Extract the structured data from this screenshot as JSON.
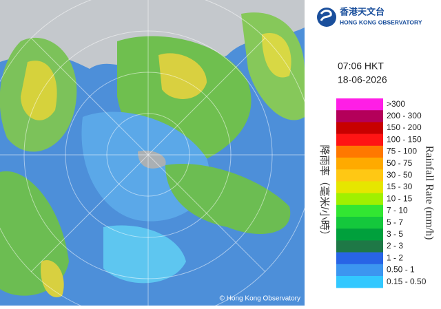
{
  "logo": {
    "name_zh": "香港天文台",
    "name_en": "HONG KONG OBSERVATORY"
  },
  "time": "07:06 HKT",
  "date": "18-06-2026",
  "legend": {
    "title_zh": "降雨率（毫米/小時）",
    "title_en": "Rainfall Rate (mm/h)",
    "items": [
      {
        "label": ">300",
        "color": "#ff1ee6"
      },
      {
        "label": "200 - 300",
        "color": "#b4005a"
      },
      {
        "label": "150 - 200",
        "color": "#c80000"
      },
      {
        "label": "100 - 150",
        "color": "#ff1414"
      },
      {
        "label": "75 - 100",
        "color": "#ff7800"
      },
      {
        "label": "50 - 75",
        "color": "#ffaa00"
      },
      {
        "label": "30 - 50",
        "color": "#ffc814"
      },
      {
        "label": "15 - 30",
        "color": "#e6e600"
      },
      {
        "label": "10 - 15",
        "color": "#a0f000"
      },
      {
        "label": "7 - 10",
        "color": "#32e632"
      },
      {
        "label": "5 - 7",
        "color": "#14c83c"
      },
      {
        "label": "3 - 5",
        "color": "#00a03c"
      },
      {
        "label": "2 - 3",
        "color": "#1e7846"
      },
      {
        "label": "1 - 2",
        "color": "#2864e6"
      },
      {
        "label": "0.50 - 1",
        "color": "#3c96f0"
      },
      {
        "label": "0.15 - 0.50",
        "color": "#32c8ff"
      }
    ]
  },
  "copyright": "© Hong Kong Observatory"
}
